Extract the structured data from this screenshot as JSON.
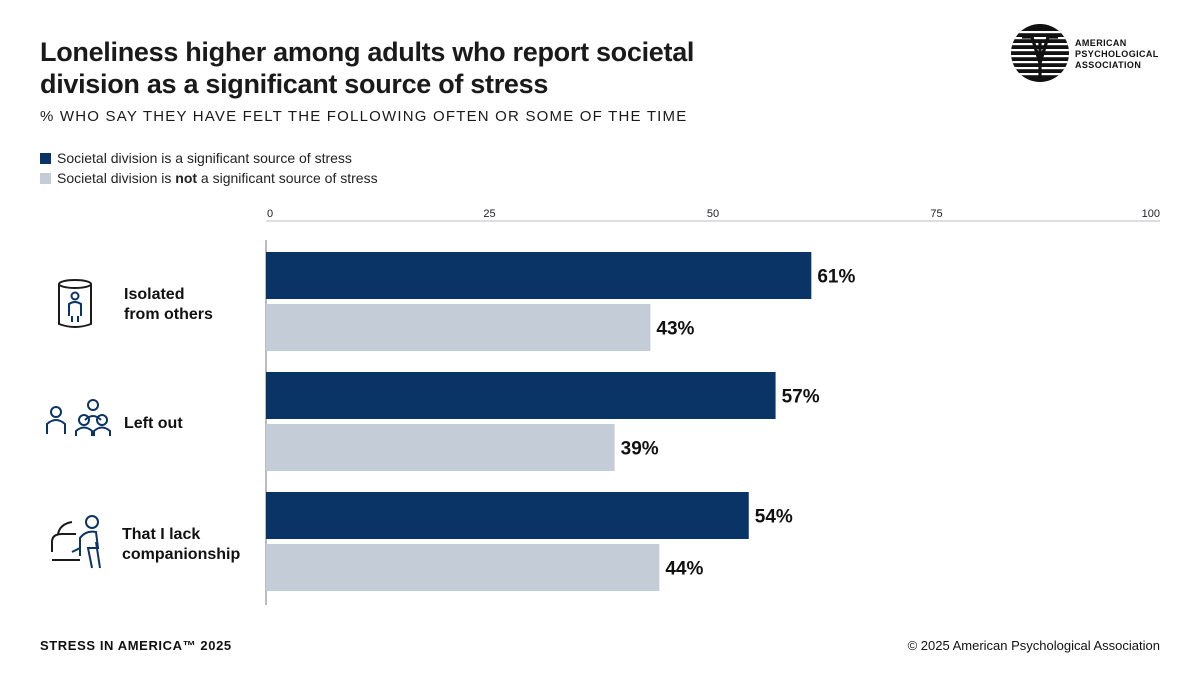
{
  "header": {
    "title": "Loneliness higher among adults who report societal division as a significant source of stress",
    "subtitle": "% WHO SAY THEY HAVE FELT THE FOLLOWING OFTEN OR SOME OF THE TIME"
  },
  "legend": {
    "item1": "Societal division is a significant source of stress",
    "item2_pre": "Societal division is ",
    "item2_bold": "not",
    "item2_post": " a significant source of stress"
  },
  "logo": {
    "line1": "AMERICAN",
    "line2": "PSYCHOLOGICAL",
    "line3": "ASSOCIATION"
  },
  "colors": {
    "series1": "#0b3466",
    "series2": "#c4ccd7",
    "axis": "#b9bec6",
    "icon": "#0b3466"
  },
  "chart_data": {
    "type": "bar",
    "orientation": "horizontal",
    "categories": [
      "Isolated\nfrom others",
      "Left out",
      "That I lack\ncompanionship"
    ],
    "series": [
      {
        "name": "Societal division is a significant source of stress",
        "values": [
          61,
          57,
          54
        ]
      },
      {
        "name": "Societal division is not a significant source of stress",
        "values": [
          43,
          39,
          44
        ]
      }
    ],
    "data_labels": [
      [
        "61%",
        "57%",
        "54%"
      ],
      [
        "43%",
        "39%",
        "44%"
      ]
    ],
    "xlim": [
      0,
      100
    ],
    "xticks": [
      0,
      25,
      50,
      75,
      100
    ],
    "xtick_labels": [
      "0",
      "25",
      "50",
      "75",
      "100"
    ],
    "axis_position": "top",
    "grid": false
  },
  "footer": {
    "left": "STRESS IN AMERICA™ 2025",
    "right": "© 2025 American Psychological Association"
  }
}
